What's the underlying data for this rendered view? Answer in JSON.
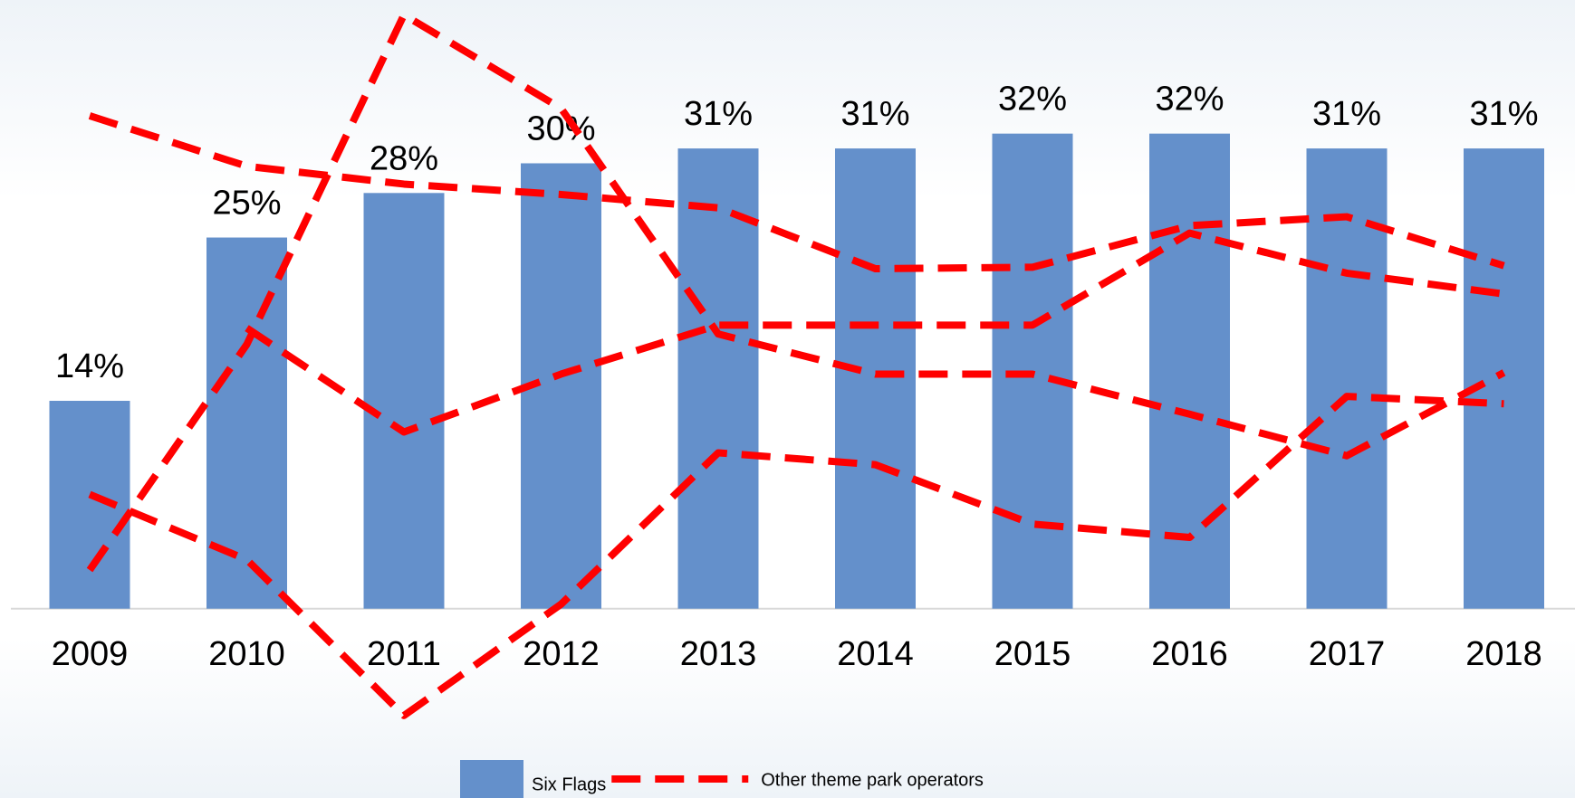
{
  "chart_data": {
    "type": "bar",
    "categories": [
      "2009",
      "2010",
      "2011",
      "2012",
      "2013",
      "2014",
      "2015",
      "2016",
      "2017",
      "2018"
    ],
    "ylim": [
      -8,
      41
    ],
    "series": [
      {
        "name": "Six Flags",
        "type": "bar",
        "color": "#6490cb",
        "values": [
          14,
          25,
          28,
          30,
          31,
          31,
          32,
          32,
          31,
          31
        ],
        "value_labels": [
          "14%",
          "25%",
          "28%",
          "30%",
          "31%",
          "31%",
          "32%",
          "32%",
          "31%",
          "31%"
        ]
      },
      {
        "name": "Other theme park operators",
        "type": "line",
        "color": "#ff0000",
        "dashed": true,
        "values": [
          33.2,
          29.8,
          28.6,
          27.9,
          27.0,
          22.9,
          23.0,
          25.8,
          26.4,
          23.1
        ]
      },
      {
        "type": "line",
        "color": "#ff0000",
        "dashed": true,
        "values": [
          2.6,
          17.8,
          40.0,
          33.7,
          18.5,
          15.8,
          15.8,
          13.1,
          10.3,
          15.9
        ]
      },
      {
        "type": "line",
        "color": "#ff0000",
        "dashed": true,
        "values": [
          null,
          18.9,
          11.9,
          15.8,
          19.1,
          19.1,
          19.1,
          25.3,
          22.6,
          21.2
        ]
      },
      {
        "type": "line",
        "color": "#ff0000",
        "dashed": true,
        "values": [
          7.7,
          3.3,
          -7.2,
          0.3,
          10.5,
          9.7,
          5.7,
          4.8,
          14.3,
          13.8
        ]
      }
    ]
  }
}
